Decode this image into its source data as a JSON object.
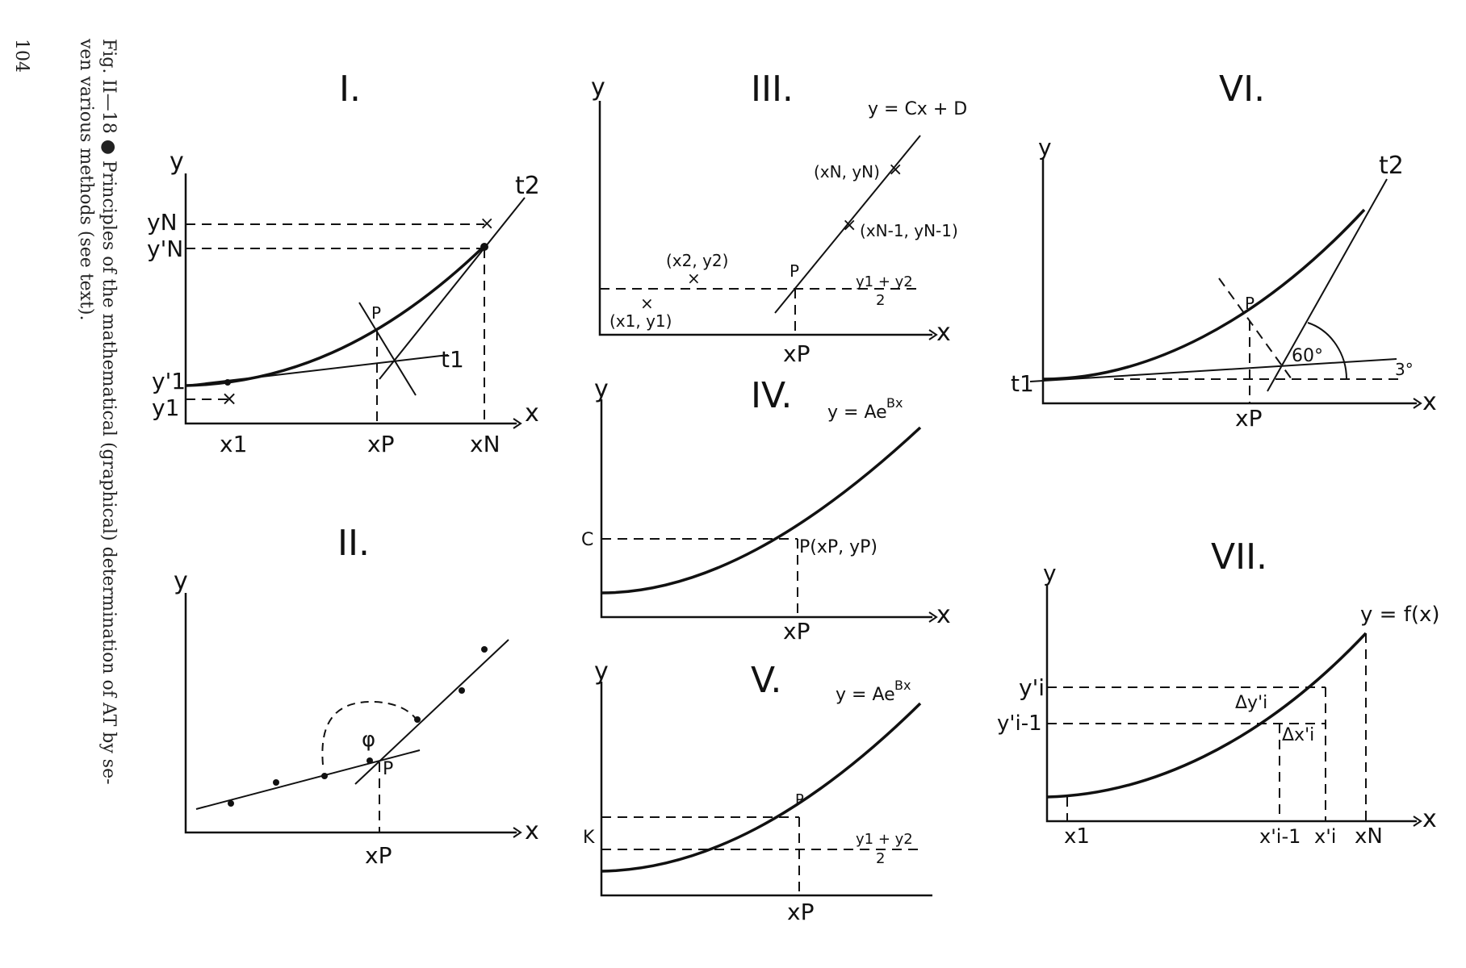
{
  "page": {
    "number": "104"
  },
  "caption": {
    "line1": "Fig. II—18 ● Principles of the mathematical (graphical) determination of AT by se-",
    "line2": "ven various methods (see text)."
  },
  "panels": {
    "I": {
      "title": "I.",
      "y": "y",
      "x": "x",
      "yN": "yN",
      "yNp": "y'N",
      "y1p": "y'1",
      "y1": "y1",
      "x1": "x1",
      "xP": "xP",
      "xN": "xN",
      "t1": "t1",
      "t2": "t2",
      "P": "P"
    },
    "II": {
      "title": "II.",
      "y": "y",
      "x": "x",
      "phi": "φ",
      "P": "P",
      "xP": "xP"
    },
    "III": {
      "title": "III.",
      "y": "y",
      "x": "x",
      "eq": "y = Cx + D",
      "pN": "(xN, yN)",
      "pN1": "(xN-1, yN-1)",
      "p2": "(x2, y2)",
      "p1": "(x1, y1)",
      "mid": "y1 + y2",
      "mid_den": "2",
      "P": "P",
      "xP": "xP"
    },
    "IV": {
      "title": "IV.",
      "y": "y",
      "x": "x",
      "eq": "y = Ae",
      "eq_exp": "Bx",
      "C": "C",
      "Pxy": "P(xP, yP)",
      "xP": "xP"
    },
    "V": {
      "title": "V.",
      "y": "y",
      "eq": "y = Ae",
      "eq_exp": "Bx",
      "K": "K",
      "P": "P",
      "mid": "y1 + y2",
      "mid_den": "2",
      "xP": "xP"
    },
    "VI": {
      "title": "VI.",
      "y": "y",
      "x": "x",
      "t1": "t1",
      "t2": "t2",
      "P": "P",
      "a60": "60°",
      "a3": "3°",
      "xP": "xP"
    },
    "VII": {
      "title": "VII.",
      "y": "y",
      "x": "x",
      "eq": "y = f(x)",
      "yi": "y'i",
      "yi1": "y'i-1",
      "dy": "Δy'i",
      "dx": "Δx'i",
      "x1": "x1",
      "xi1": "x'i-1",
      "xi": "x'i",
      "xN": "xN"
    }
  }
}
